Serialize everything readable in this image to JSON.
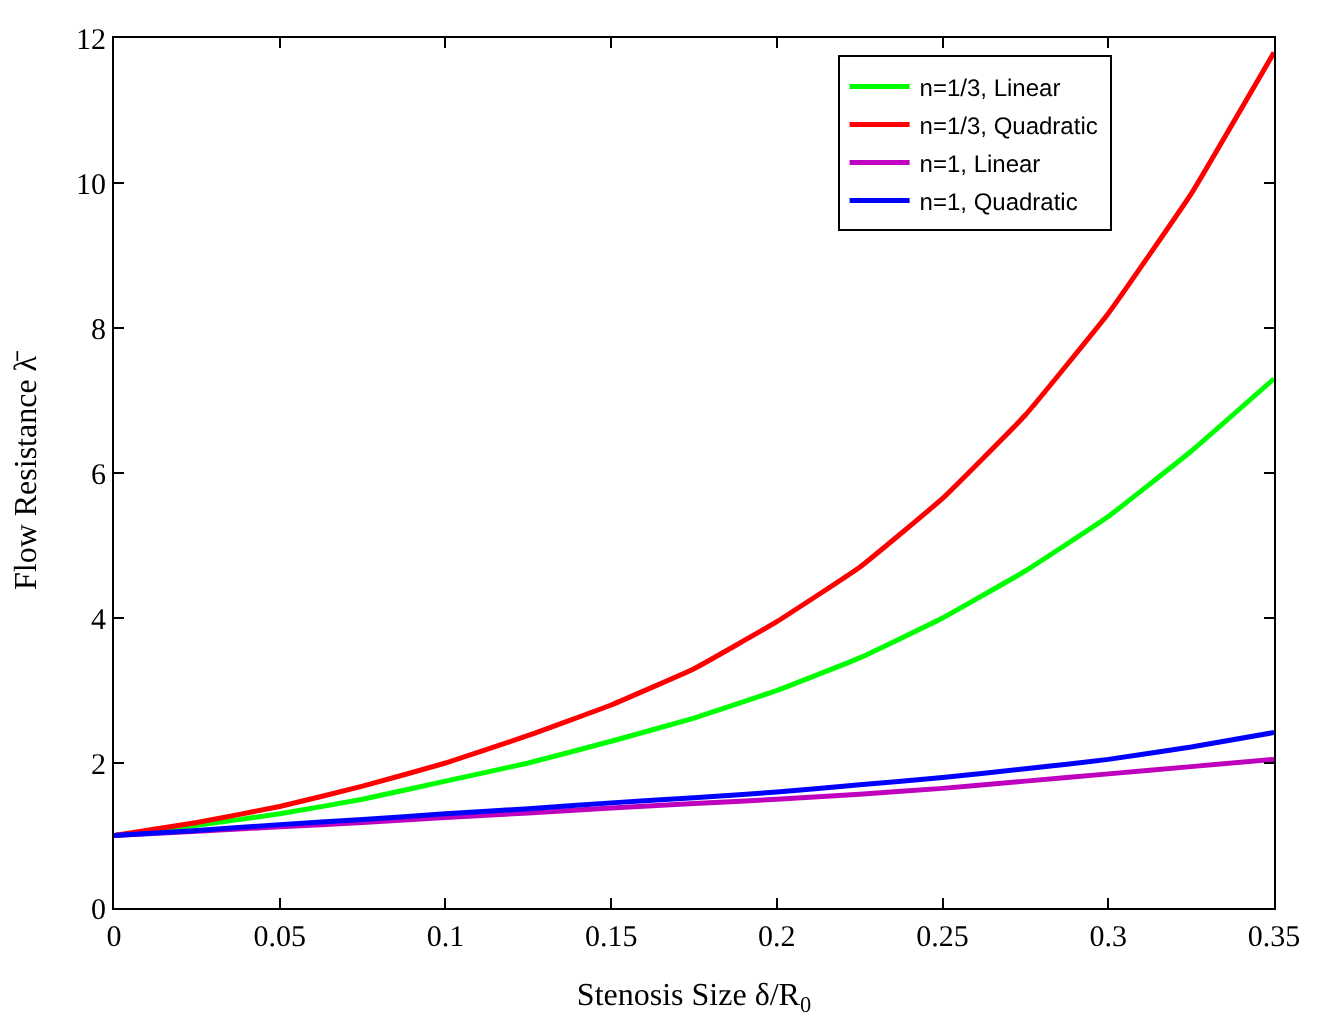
{
  "chart_data": {
    "type": "line",
    "xlabel": "Stenosis Size δ/R$_{0}$",
    "ylabel": "Flow Resistance λ̄",
    "x": [
      0,
      0.025,
      0.05,
      0.075,
      0.1,
      0.125,
      0.15,
      0.175,
      0.2,
      0.225,
      0.25,
      0.275,
      0.3,
      0.325,
      0.35
    ],
    "series": [
      {
        "name": "n=1/3, Linear",
        "color": "#00ff00",
        "values": [
          1,
          1.14,
          1.3,
          1.5,
          1.75,
          2.0,
          2.3,
          2.62,
          3.0,
          3.45,
          4.0,
          4.65,
          5.4,
          6.3,
          7.3
        ]
      },
      {
        "name": "n=1/3, Quadratic",
        "color": "#ff0000",
        "values": [
          1,
          1.18,
          1.4,
          1.68,
          2.0,
          2.38,
          2.8,
          3.3,
          3.95,
          4.7,
          5.65,
          6.8,
          8.2,
          9.85,
          11.8
        ]
      },
      {
        "name": "n=1, Linear",
        "color": "#bf00bf",
        "values": [
          1,
          1.06,
          1.12,
          1.18,
          1.25,
          1.31,
          1.38,
          1.44,
          1.5,
          1.57,
          1.65,
          1.75,
          1.85,
          1.95,
          2.05
        ]
      },
      {
        "name": "n=1, Quadratic",
        "color": "#0000ff",
        "values": [
          1,
          1.07,
          1.15,
          1.22,
          1.3,
          1.37,
          1.45,
          1.52,
          1.6,
          1.7,
          1.8,
          1.92,
          2.05,
          2.22,
          2.42
        ]
      }
    ],
    "xlim": [
      0,
      0.35
    ],
    "xticks": [
      0,
      0.05,
      0.1,
      0.15,
      0.2,
      0.25,
      0.3,
      0.35
    ],
    "ylim": [
      0,
      12
    ],
    "yticks": [
      0,
      2,
      4,
      6,
      8,
      10,
      12
    ],
    "legend": "top right",
    "marker": "none",
    "line_style": "solid"
  }
}
